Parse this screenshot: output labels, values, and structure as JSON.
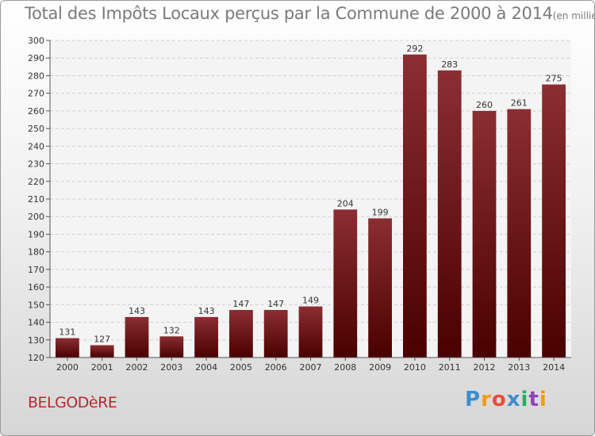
{
  "chart_data": {
    "type": "bar",
    "title": "Total des Impôts Locaux perçus par la Commune de 2000 à 2014",
    "subtitle": "(en milliers d'€)",
    "categories": [
      "2000",
      "2001",
      "2002",
      "2003",
      "2004",
      "2005",
      "2006",
      "2007",
      "2008",
      "2009",
      "2010",
      "2011",
      "2012",
      "2013",
      "2014"
    ],
    "values": [
      131,
      127,
      143,
      132,
      143,
      147,
      147,
      149,
      204,
      199,
      292,
      283,
      260,
      261,
      275
    ],
    "ylim": [
      120,
      300
    ],
    "yticks": [
      120,
      130,
      140,
      150,
      160,
      170,
      180,
      190,
      200,
      210,
      220,
      230,
      240,
      250,
      260,
      270,
      280,
      290,
      300
    ],
    "grid": true,
    "xlabel": "",
    "ylabel": ""
  },
  "commune": "BELGODèRE",
  "logo": {
    "text": "Proxiti",
    "letters": [
      "P",
      "r",
      "o",
      "x",
      "i",
      "t",
      "i"
    ]
  },
  "colors": {
    "bar_top": "#8b2e33",
    "bar_bottom": "#4a0000",
    "commune": "#b52a2f",
    "title": "#7a7a7a"
  }
}
